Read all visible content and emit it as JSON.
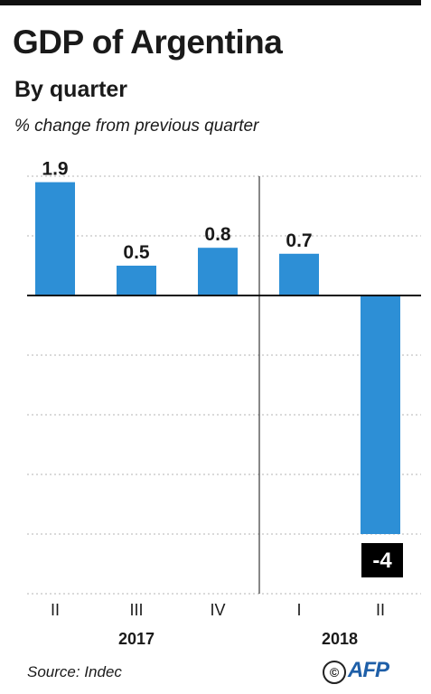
{
  "header": {
    "title": "GDP of Argentina",
    "subtitle": "By quarter",
    "unit": "% change from previous quarter"
  },
  "footer": {
    "source": "Source: Indec",
    "copyright_symbol": "©",
    "logo_text": "AFP"
  },
  "colors": {
    "bar": "#2d8fd6",
    "axis": "#111111",
    "grid": "#b5b5b5",
    "negative_label_bg": "#000000",
    "negative_label_text": "#ffffff",
    "logo": "#1e5fa8"
  },
  "chart_data": {
    "type": "bar",
    "categories": [
      "II",
      "III",
      "IV",
      "I",
      "II"
    ],
    "year_groups": [
      {
        "label": "2017",
        "categories": [
          "II",
          "III",
          "IV"
        ]
      },
      {
        "label": "2018",
        "categories": [
          "I",
          "II"
        ]
      }
    ],
    "values": [
      1.9,
      0.5,
      0.8,
      0.7,
      -4
    ],
    "value_labels": [
      "1.9",
      "0.5",
      "0.8",
      "0.7",
      "-4"
    ],
    "title": "GDP of Argentina",
    "subtitle": "By quarter",
    "ylabel": "% change from previous quarter",
    "ylim": [
      -5,
      2
    ],
    "grid": true,
    "grid_style": "dotted",
    "legend": "none"
  }
}
